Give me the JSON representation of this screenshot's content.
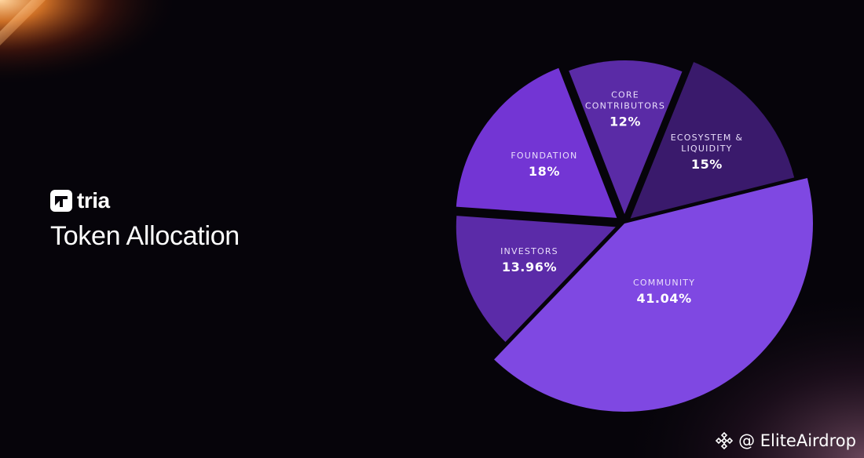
{
  "brand": {
    "name": "tria",
    "icon": "tria-logo-icon"
  },
  "title": "Token Allocation",
  "watermark": {
    "text": "@ EliteAirdrop",
    "icon": "binance-diamond-icon"
  },
  "colors": {
    "background": "#06040a",
    "community": "#7f48e2",
    "investors": "#5b2ba8",
    "foundation": "#7335d4",
    "core_contributors": "#5a2ba6",
    "ecosystem": "#3a1a6c"
  },
  "chart_data": {
    "type": "pie",
    "title": "Token Allocation",
    "slices": [
      {
        "label": "COMMUNITY",
        "lines": [
          "COMMUNITY"
        ],
        "value": 41.04,
        "display": "41.04%",
        "color": "#7f48e2"
      },
      {
        "label": "INVESTORS",
        "lines": [
          "INVESTORS"
        ],
        "value": 13.96,
        "display": "13.96%",
        "color": "#5b2ba8"
      },
      {
        "label": "FOUNDATION",
        "lines": [
          "FOUNDATION"
        ],
        "value": 18,
        "display": "18%",
        "color": "#7335d4"
      },
      {
        "label": "CORE CONTRIBUTORS",
        "lines": [
          "CORE",
          "CONTRIBUTORS"
        ],
        "value": 12,
        "display": "12%",
        "color": "#5a2ba6"
      },
      {
        "label": "ECOSYSTEM & LIQUIDITY",
        "lines": [
          "ECOSYSTEM &",
          "LIQUIDITY"
        ],
        "value": 15,
        "display": "15%",
        "color": "#3a1a6c"
      }
    ]
  }
}
